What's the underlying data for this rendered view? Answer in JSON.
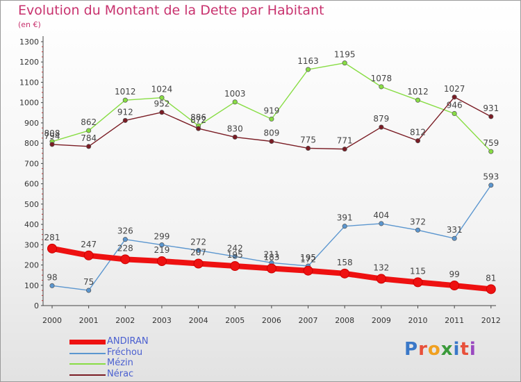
{
  "header": {
    "title": "Evolution du Montant de la Dette par Habitant",
    "subtitle": "(en €)"
  },
  "chart_data": {
    "type": "line",
    "title": "Evolution du Montant de la Dette par Habitant",
    "subtitle": "(en €)",
    "xlabel": "",
    "ylabel": "",
    "ylim": [
      0,
      1300
    ],
    "yticks": [
      0,
      100,
      200,
      300,
      400,
      500,
      600,
      700,
      800,
      900,
      1000,
      1100,
      1200,
      1300
    ],
    "grid": false,
    "legend_position": "bottom-left",
    "categories": [
      "2000",
      "2001",
      "2002",
      "2003",
      "2004",
      "2005",
      "2006",
      "2007",
      "2008",
      "2009",
      "2010",
      "2011",
      "2012"
    ],
    "series": [
      {
        "name": "ANDIRAN",
        "color": "#ee1111",
        "values": [
          281,
          247,
          228,
          219,
          207,
          195,
          183,
          172,
          158,
          132,
          115,
          99,
          81
        ]
      },
      {
        "name": "Fréchou",
        "color": "#5b96cf",
        "values": [
          98,
          75,
          326,
          299,
          272,
          242,
          211,
          195,
          391,
          404,
          372,
          331,
          593
        ]
      },
      {
        "name": "Mézin",
        "color": "#88dd44",
        "values": [
          808,
          862,
          1012,
          1024,
          886,
          1003,
          919,
          1163,
          1195,
          1078,
          1012,
          946,
          759
        ]
      },
      {
        "name": "Nérac",
        "color": "#7a1c24",
        "values": [
          794,
          784,
          912,
          952,
          872,
          830,
          809,
          775,
          771,
          879,
          812,
          1027,
          931
        ]
      }
    ]
  },
  "logo": {
    "text": "Proxiti",
    "colors": [
      "#3a78c8",
      "#e8503a",
      "#f0a020",
      "#3a9a3a",
      "#3a78c8",
      "#e8503a",
      "#9a48c0"
    ]
  }
}
